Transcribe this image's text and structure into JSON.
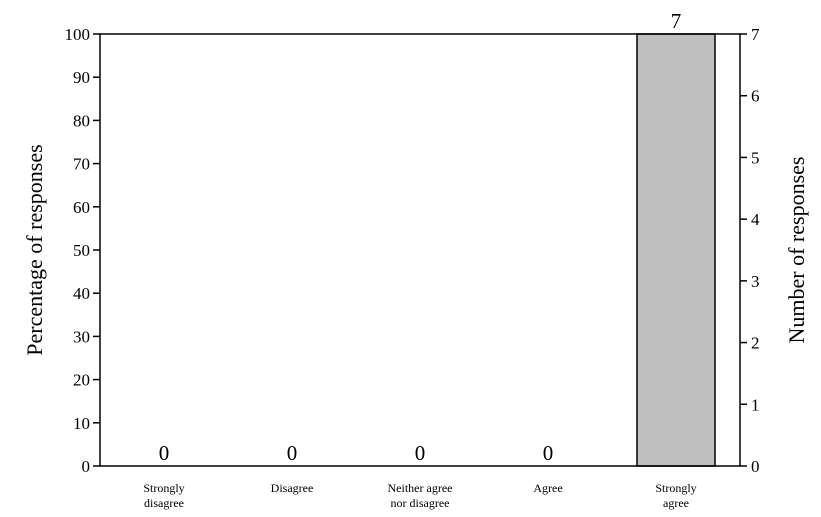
{
  "chart_data": {
    "type": "bar",
    "categories": [
      [
        "Strongly",
        "disagree"
      ],
      [
        "Disagree"
      ],
      [
        "Neither agree",
        "nor disagree"
      ],
      [
        "Agree"
      ],
      [
        "Strongly",
        "agree"
      ]
    ],
    "values": [
      0,
      0,
      0,
      0,
      7
    ],
    "data_labels": [
      "0",
      "0",
      "0",
      "0",
      "7"
    ],
    "ylabel": "Percentage of responses",
    "y2label": "Number of responses",
    "ylim": [
      0,
      100
    ],
    "y2lim": [
      0,
      7
    ],
    "yticks": [
      0,
      10,
      20,
      30,
      40,
      50,
      60,
      70,
      80,
      90,
      100
    ],
    "y2ticks": [
      0,
      1,
      2,
      3,
      4,
      5,
      6,
      7
    ],
    "grid": false,
    "bar_color": "#c0c0c0"
  }
}
